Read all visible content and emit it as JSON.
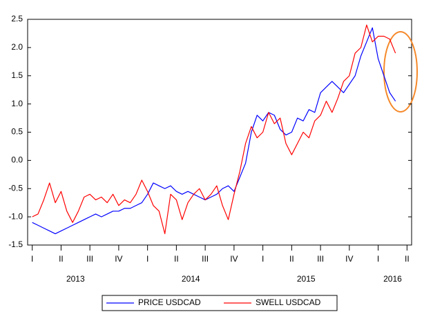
{
  "chart_data": {
    "type": "line",
    "x": [
      2013.0,
      2013.05,
      2013.1,
      2013.15,
      2013.2,
      2013.25,
      2013.3,
      2013.35,
      2013.4,
      2013.45,
      2013.5,
      2013.55,
      2013.6,
      2013.65,
      2013.7,
      2013.75,
      2013.8,
      2013.85,
      2013.9,
      2013.95,
      2014.0,
      2014.05,
      2014.1,
      2014.15,
      2014.2,
      2014.25,
      2014.3,
      2014.35,
      2014.4,
      2014.45,
      2014.5,
      2014.55,
      2014.6,
      2014.65,
      2014.7,
      2014.75,
      2014.8,
      2014.85,
      2014.9,
      2014.95,
      2015.0,
      2015.05,
      2015.1,
      2015.15,
      2015.2,
      2015.25,
      2015.3,
      2015.35,
      2015.4,
      2015.45,
      2015.5,
      2015.55,
      2015.6,
      2015.65,
      2015.7,
      2015.75,
      2015.8,
      2015.85,
      2015.9,
      2015.95,
      2016.0,
      2016.05,
      2016.1,
      2016.15
    ],
    "series": [
      {
        "name": "PRICE USDCAD",
        "color": "#0000ff",
        "values": [
          -1.1,
          -1.15,
          -1.2,
          -1.25,
          -1.3,
          -1.25,
          -1.2,
          -1.15,
          -1.1,
          -1.05,
          -1.0,
          -0.95,
          -1.0,
          -0.95,
          -0.9,
          -0.9,
          -0.85,
          -0.85,
          -0.8,
          -0.75,
          -0.6,
          -0.4,
          -0.45,
          -0.5,
          -0.45,
          -0.55,
          -0.6,
          -0.55,
          -0.6,
          -0.65,
          -0.7,
          -0.65,
          -0.6,
          -0.5,
          -0.45,
          -0.55,
          -0.3,
          -0.05,
          0.5,
          0.8,
          0.7,
          0.85,
          0.8,
          0.55,
          0.45,
          0.5,
          0.75,
          0.7,
          0.9,
          0.85,
          1.2,
          1.3,
          1.4,
          1.3,
          1.2,
          1.35,
          1.5,
          1.85,
          2.1,
          2.35,
          1.8,
          1.5,
          1.2,
          1.05
        ]
      },
      {
        "name": "SWELL USDCAD",
        "color": "#ff0000",
        "values": [
          -1.0,
          -0.95,
          -0.7,
          -0.4,
          -0.75,
          -0.55,
          -0.9,
          -1.1,
          -0.9,
          -0.65,
          -0.6,
          -0.7,
          -0.65,
          -0.75,
          -0.6,
          -0.8,
          -0.7,
          -0.75,
          -0.6,
          -0.35,
          -0.55,
          -0.8,
          -0.9,
          -1.3,
          -0.6,
          -0.7,
          -1.05,
          -0.75,
          -0.6,
          -0.5,
          -0.7,
          -0.6,
          -0.45,
          -0.8,
          -1.05,
          -0.6,
          -0.2,
          0.3,
          0.6,
          0.4,
          0.5,
          0.85,
          0.65,
          0.75,
          0.3,
          0.1,
          0.3,
          0.5,
          0.4,
          0.7,
          0.8,
          1.05,
          0.85,
          1.1,
          1.4,
          1.5,
          1.9,
          2.0,
          2.4,
          2.1,
          2.2,
          2.2,
          2.15,
          1.9
        ]
      }
    ],
    "xlim": [
      2012.96,
      2016.29
    ],
    "xticks": [
      {
        "value": 2013,
        "label": "I"
      },
      {
        "value": 2013.25,
        "label": "II"
      },
      {
        "value": 2013.5,
        "label": "III"
      },
      {
        "value": 2013.75,
        "label": "IV"
      },
      {
        "value": 2014,
        "label": "I"
      },
      {
        "value": 2014.25,
        "label": "II"
      },
      {
        "value": 2014.5,
        "label": "III"
      },
      {
        "value": 2014.75,
        "label": "IV"
      },
      {
        "value": 2015,
        "label": "I"
      },
      {
        "value": 2015.25,
        "label": "II"
      },
      {
        "value": 2015.5,
        "label": "III"
      },
      {
        "value": 2015.75,
        "label": "IV"
      },
      {
        "value": 2016,
        "label": "I"
      },
      {
        "value": 2016.25,
        "label": "II"
      }
    ],
    "years": [
      "2013",
      "2014",
      "2015",
      "2016"
    ],
    "ylim": [
      -1.5,
      2.5
    ],
    "yticks": [
      2.5,
      {
        "value": 2.0,
        "label": "2.0"
      },
      1.5,
      {
        "value": 1.0,
        "label": "1.0"
      },
      0.5,
      {
        "value": 0.0,
        "label": "0.0"
      },
      -0.5,
      {
        "value": -1.0,
        "label": "-1.0"
      },
      -1.5
    ],
    "grid": false
  }
}
